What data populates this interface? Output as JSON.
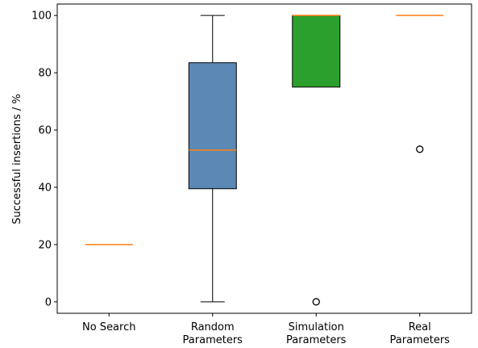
{
  "chart_data": {
    "type": "box",
    "title": "",
    "xlabel": "",
    "ylabel": "Successful insertions / %",
    "ylim": [
      -4,
      104
    ],
    "yticks": [
      0,
      20,
      40,
      60,
      80,
      100
    ],
    "grid": false,
    "categories": [
      [
        "No Search"
      ],
      [
        "Random",
        "Parameters"
      ],
      [
        "Simulation",
        "Parameters"
      ],
      [
        "Real",
        "Parameters"
      ]
    ],
    "boxes": [
      {
        "whisker_low": 20,
        "q1": 20,
        "median": 20,
        "q3": 20,
        "whisker_high": 20,
        "outliers": [],
        "color": "#ffffff"
      },
      {
        "whisker_low": 0,
        "q1": 39.5,
        "median": 53,
        "q3": 83.5,
        "whisker_high": 100,
        "outliers": [],
        "color": "#5b88b5"
      },
      {
        "whisker_low": 75,
        "q1": 75,
        "median": 100,
        "q3": 100,
        "whisker_high": 100,
        "outliers": [
          0
        ],
        "color": "#2ca02c"
      },
      {
        "whisker_low": 100,
        "q1": 100,
        "median": 100,
        "q3": 100,
        "whisker_high": 100,
        "outliers": [
          53.3
        ],
        "color": "#ffffff"
      }
    ],
    "median_color": "#ff7f0e"
  }
}
